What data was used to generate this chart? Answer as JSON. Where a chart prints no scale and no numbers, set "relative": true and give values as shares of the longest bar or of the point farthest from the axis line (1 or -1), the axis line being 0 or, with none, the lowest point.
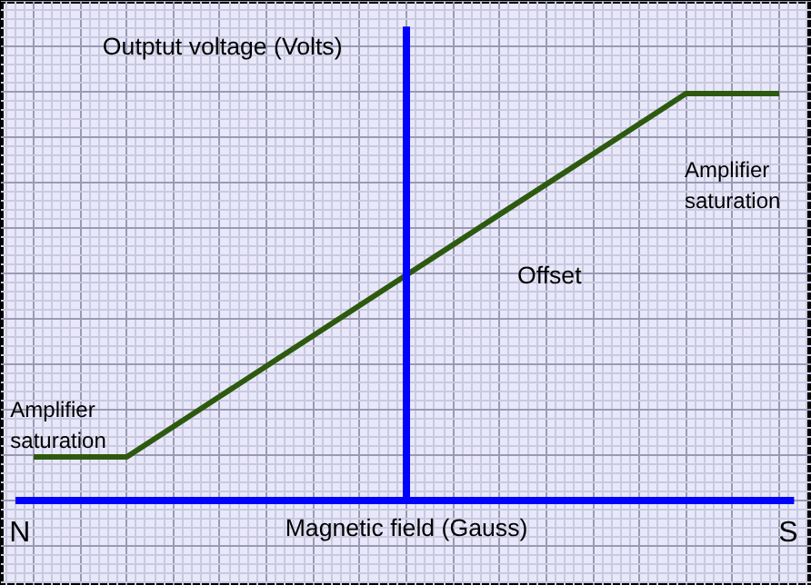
{
  "chart_data": {
    "type": "line",
    "relative": true,
    "categories": [
      null,
      null,
      null,
      null,
      null,
      null,
      null,
      null,
      null
    ],
    "series": [
      {
        "color": "#2d5a0f",
        "values": [
          0.107,
          0.107,
          0.256,
          0.405,
          0.554,
          0.703,
          0.851,
          1.0,
          1.0
        ]
      }
    ],
    "xlabel": "Magnetic field (Gauss)",
    "ylabel": "Outptut voltage (Volts)",
    "annotations": [
      "Amplifier saturation",
      "Amplifier saturation",
      "Offset",
      "N",
      "S"
    ],
    "grid": true,
    "marker": "none",
    "line_style": "solid"
  }
}
